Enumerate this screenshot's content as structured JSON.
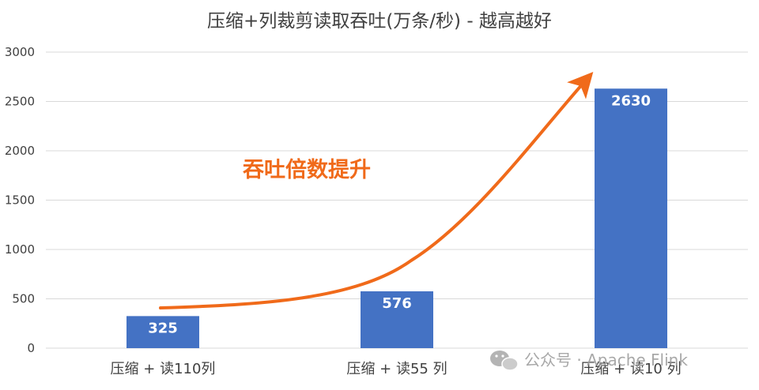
{
  "chart_data": {
    "type": "bar",
    "title": "压缩+列裁剪读取吞吐(万条/秒) - 越高越好",
    "categories": [
      "压缩 + 读110列",
      "压缩 + 读55 列",
      "压缩 + 读10 列"
    ],
    "values": [
      325,
      576,
      2630
    ],
    "ylim": [
      0,
      3000
    ],
    "yticks": [
      0,
      500,
      1000,
      1500,
      2000,
      2500,
      3000
    ],
    "grid": true,
    "data_labels": [
      "325",
      "576",
      "2630"
    ],
    "bar_color": "#4472c4",
    "annotation": {
      "text": "吞吐倍数提升",
      "color": "#f06a1a"
    }
  },
  "watermark": {
    "icon": "wechat-icon",
    "text": "公众号 · Apache Flink"
  }
}
